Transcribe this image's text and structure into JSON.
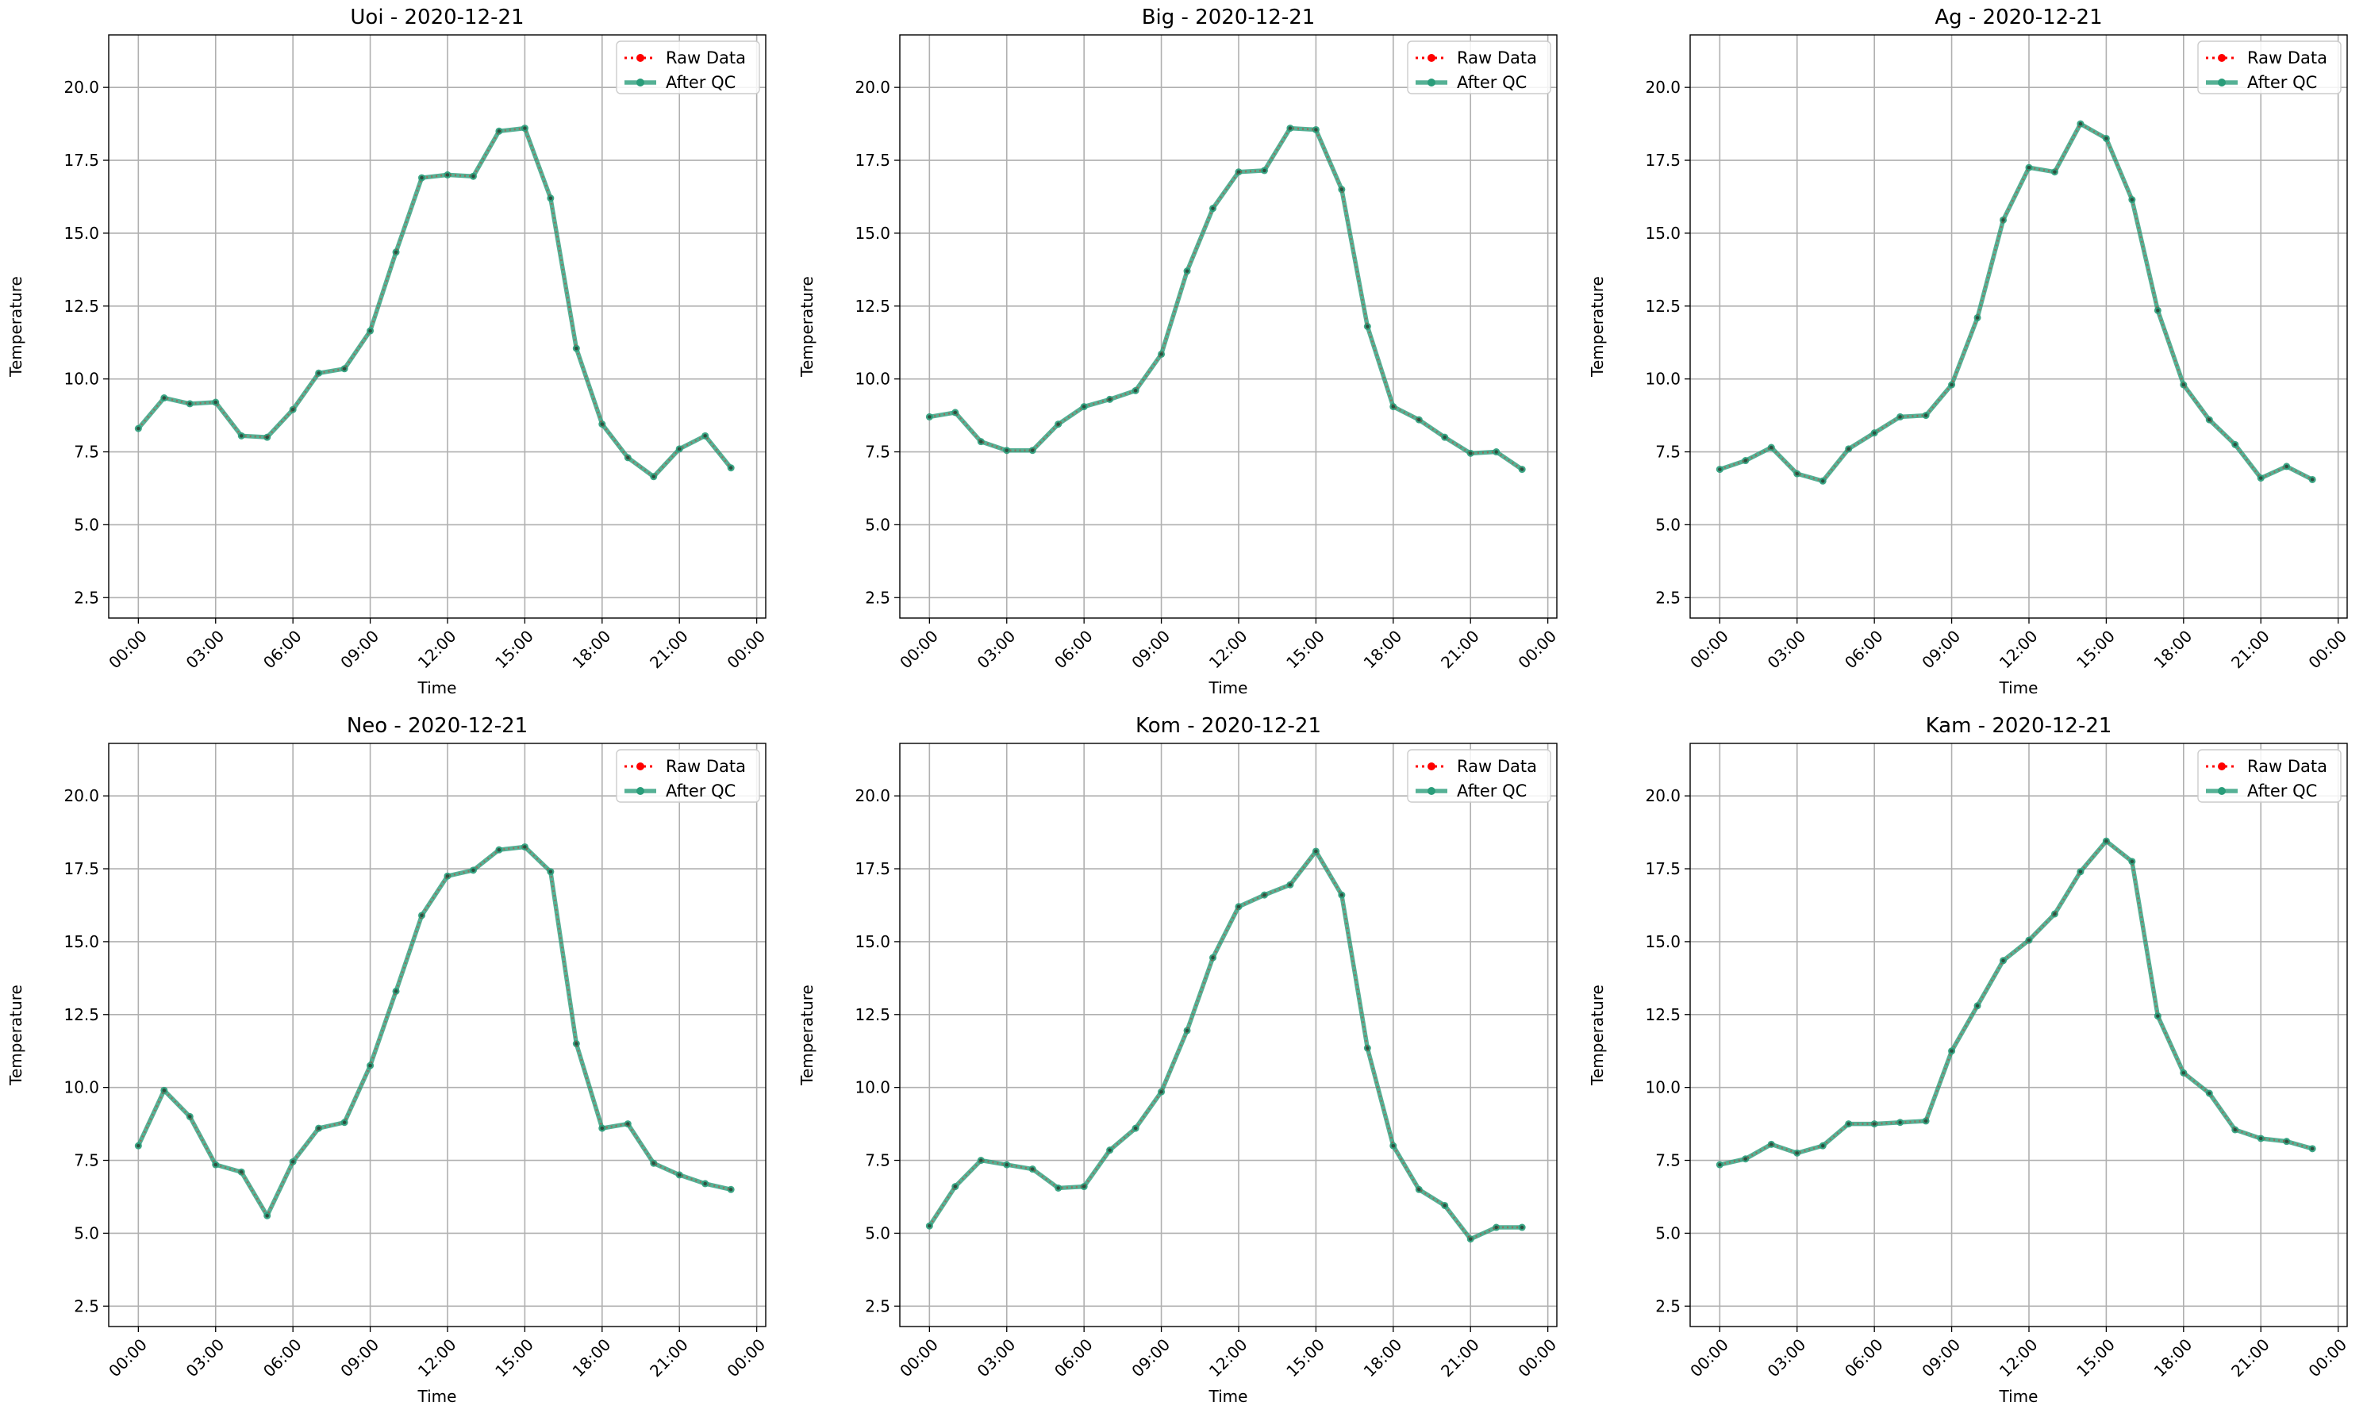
{
  "chart_data": [
    {
      "type": "line",
      "title": "Uoi - 2020-12-21",
      "xlabel": "Time",
      "ylabel": "Temperature",
      "x": [
        "00:00",
        "01:00",
        "02:00",
        "03:00",
        "04:00",
        "05:00",
        "06:00",
        "07:00",
        "08:00",
        "09:00",
        "10:00",
        "11:00",
        "12:00",
        "13:00",
        "14:00",
        "15:00",
        "16:00",
        "17:00",
        "18:00",
        "19:00",
        "20:00",
        "21:00",
        "22:00",
        "23:00"
      ],
      "xticks": [
        "00:00",
        "03:00",
        "06:00",
        "09:00",
        "12:00",
        "15:00",
        "18:00",
        "21:00",
        "00:00"
      ],
      "yticks": [
        "2.5",
        "5.0",
        "7.5",
        "10.0",
        "12.5",
        "15.0",
        "17.5",
        "20.0"
      ],
      "ylim": [
        1.8,
        21.8
      ],
      "grid": true,
      "legend": "top-right",
      "series": [
        {
          "name": "Raw Data",
          "color": "#ff0000",
          "values": [
            8.3,
            9.35,
            9.15,
            9.2,
            8.05,
            8.0,
            8.95,
            10.2,
            10.35,
            11.65,
            14.35,
            16.9,
            17.0,
            16.95,
            18.5,
            18.6,
            16.2,
            11.05,
            8.45,
            7.3,
            6.65,
            7.6,
            8.05,
            6.95
          ]
        },
        {
          "name": "After QC",
          "color": "#2a9d7a",
          "values": [
            8.3,
            9.35,
            9.15,
            9.2,
            8.05,
            8.0,
            8.95,
            10.2,
            10.35,
            11.65,
            14.35,
            16.9,
            17.0,
            16.95,
            18.5,
            18.6,
            16.2,
            11.05,
            8.45,
            7.3,
            6.65,
            7.6,
            8.05,
            6.95
          ]
        }
      ]
    },
    {
      "type": "line",
      "title": "Big - 2020-12-21",
      "xlabel": "Time",
      "ylabel": "Temperature",
      "x": [
        "00:00",
        "01:00",
        "02:00",
        "03:00",
        "04:00",
        "05:00",
        "06:00",
        "07:00",
        "08:00",
        "09:00",
        "10:00",
        "11:00",
        "12:00",
        "13:00",
        "14:00",
        "15:00",
        "16:00",
        "17:00",
        "18:00",
        "19:00",
        "20:00",
        "21:00",
        "22:00",
        "23:00"
      ],
      "xticks": [
        "00:00",
        "03:00",
        "06:00",
        "09:00",
        "12:00",
        "15:00",
        "18:00",
        "21:00",
        "00:00"
      ],
      "yticks": [
        "2.5",
        "5.0",
        "7.5",
        "10.0",
        "12.5",
        "15.0",
        "17.5",
        "20.0"
      ],
      "ylim": [
        1.8,
        21.8
      ],
      "grid": true,
      "legend": "top-right",
      "series": [
        {
          "name": "Raw Data",
          "color": "#ff0000",
          "values": [
            8.7,
            8.85,
            7.85,
            7.55,
            7.55,
            8.45,
            9.05,
            9.3,
            9.6,
            10.85,
            13.7,
            15.85,
            17.1,
            17.15,
            18.6,
            18.55,
            16.5,
            11.8,
            9.05,
            8.6,
            8.0,
            7.45,
            7.5,
            6.9
          ]
        },
        {
          "name": "After QC",
          "color": "#2a9d7a",
          "values": [
            8.7,
            8.85,
            7.85,
            7.55,
            7.55,
            8.45,
            9.05,
            9.3,
            9.6,
            10.85,
            13.7,
            15.85,
            17.1,
            17.15,
            18.6,
            18.55,
            16.5,
            11.8,
            9.05,
            8.6,
            8.0,
            7.45,
            7.5,
            6.9
          ]
        }
      ]
    },
    {
      "type": "line",
      "title": "Ag - 2020-12-21",
      "xlabel": "Time",
      "ylabel": "Temperature",
      "x": [
        "00:00",
        "01:00",
        "02:00",
        "03:00",
        "04:00",
        "05:00",
        "06:00",
        "07:00",
        "08:00",
        "09:00",
        "10:00",
        "11:00",
        "12:00",
        "13:00",
        "14:00",
        "15:00",
        "16:00",
        "17:00",
        "18:00",
        "19:00",
        "20:00",
        "21:00",
        "22:00",
        "23:00"
      ],
      "xticks": [
        "00:00",
        "03:00",
        "06:00",
        "09:00",
        "12:00",
        "15:00",
        "18:00",
        "21:00",
        "00:00"
      ],
      "yticks": [
        "2.5",
        "5.0",
        "7.5",
        "10.0",
        "12.5",
        "15.0",
        "17.5",
        "20.0"
      ],
      "ylim": [
        1.8,
        21.8
      ],
      "grid": true,
      "legend": "top-right",
      "series": [
        {
          "name": "Raw Data",
          "color": "#ff0000",
          "values": [
            6.9,
            7.2,
            7.65,
            6.75,
            6.5,
            7.6,
            8.15,
            8.7,
            8.75,
            9.8,
            12.1,
            15.45,
            17.25,
            17.1,
            18.75,
            18.25,
            16.15,
            12.35,
            9.8,
            8.6,
            7.75,
            6.6,
            7.0,
            6.55
          ]
        },
        {
          "name": "After QC",
          "color": "#2a9d7a",
          "values": [
            6.9,
            7.2,
            7.65,
            6.75,
            6.5,
            7.6,
            8.15,
            8.7,
            8.75,
            9.8,
            12.1,
            15.45,
            17.25,
            17.1,
            18.75,
            18.25,
            16.15,
            12.35,
            9.8,
            8.6,
            7.75,
            6.6,
            7.0,
            6.55
          ]
        }
      ]
    },
    {
      "type": "line",
      "title": "Neo - 2020-12-21",
      "xlabel": "Time",
      "ylabel": "Temperature",
      "x": [
        "00:00",
        "01:00",
        "02:00",
        "03:00",
        "04:00",
        "05:00",
        "06:00",
        "07:00",
        "08:00",
        "09:00",
        "10:00",
        "11:00",
        "12:00",
        "13:00",
        "14:00",
        "15:00",
        "16:00",
        "17:00",
        "18:00",
        "19:00",
        "20:00",
        "21:00",
        "22:00",
        "23:00"
      ],
      "xticks": [
        "00:00",
        "03:00",
        "06:00",
        "09:00",
        "12:00",
        "15:00",
        "18:00",
        "21:00",
        "00:00"
      ],
      "yticks": [
        "2.5",
        "5.0",
        "7.5",
        "10.0",
        "12.5",
        "15.0",
        "17.5",
        "20.0"
      ],
      "ylim": [
        1.8,
        21.8
      ],
      "grid": true,
      "legend": "top-right",
      "series": [
        {
          "name": "Raw Data",
          "color": "#ff0000",
          "values": [
            8.0,
            9.9,
            9.0,
            7.35,
            7.1,
            5.6,
            7.45,
            8.6,
            8.8,
            10.75,
            13.3,
            15.9,
            17.25,
            17.45,
            18.15,
            18.25,
            17.4,
            11.5,
            8.6,
            8.75,
            7.4,
            7.0,
            6.7,
            6.5
          ]
        },
        {
          "name": "After QC",
          "color": "#2a9d7a",
          "values": [
            8.0,
            9.9,
            9.0,
            7.35,
            7.1,
            5.6,
            7.45,
            8.6,
            8.8,
            10.75,
            13.3,
            15.9,
            17.25,
            17.45,
            18.15,
            18.25,
            17.4,
            11.5,
            8.6,
            8.75,
            7.4,
            7.0,
            6.7,
            6.5
          ]
        }
      ]
    },
    {
      "type": "line",
      "title": "Kom - 2020-12-21",
      "xlabel": "Time",
      "ylabel": "Temperature",
      "x": [
        "00:00",
        "01:00",
        "02:00",
        "03:00",
        "04:00",
        "05:00",
        "06:00",
        "07:00",
        "08:00",
        "09:00",
        "10:00",
        "11:00",
        "12:00",
        "13:00",
        "14:00",
        "15:00",
        "16:00",
        "17:00",
        "18:00",
        "19:00",
        "20:00",
        "21:00",
        "22:00",
        "23:00"
      ],
      "xticks": [
        "00:00",
        "03:00",
        "06:00",
        "09:00",
        "12:00",
        "15:00",
        "18:00",
        "21:00",
        "00:00"
      ],
      "yticks": [
        "2.5",
        "5.0",
        "7.5",
        "10.0",
        "12.5",
        "15.0",
        "17.5",
        "20.0"
      ],
      "ylim": [
        1.8,
        21.8
      ],
      "grid": true,
      "legend": "top-right",
      "series": [
        {
          "name": "Raw Data",
          "color": "#ff0000",
          "values": [
            5.25,
            6.6,
            7.5,
            7.35,
            7.2,
            6.55,
            6.6,
            7.85,
            8.6,
            9.85,
            11.95,
            14.45,
            16.2,
            16.6,
            16.95,
            18.1,
            16.6,
            11.35,
            8.0,
            6.5,
            5.95,
            4.8,
            5.2,
            5.2
          ]
        },
        {
          "name": "After QC",
          "color": "#2a9d7a",
          "values": [
            5.25,
            6.6,
            7.5,
            7.35,
            7.2,
            6.55,
            6.6,
            7.85,
            8.6,
            9.85,
            11.95,
            14.45,
            16.2,
            16.6,
            16.95,
            18.1,
            16.6,
            11.35,
            8.0,
            6.5,
            5.95,
            4.8,
            5.2,
            5.2
          ]
        }
      ]
    },
    {
      "type": "line",
      "title": "Kam - 2020-12-21",
      "xlabel": "Time",
      "ylabel": "Temperature",
      "x": [
        "00:00",
        "01:00",
        "02:00",
        "03:00",
        "04:00",
        "05:00",
        "06:00",
        "07:00",
        "08:00",
        "09:00",
        "10:00",
        "11:00",
        "12:00",
        "13:00",
        "14:00",
        "15:00",
        "16:00",
        "17:00",
        "18:00",
        "19:00",
        "20:00",
        "21:00",
        "22:00",
        "23:00"
      ],
      "xticks": [
        "00:00",
        "03:00",
        "06:00",
        "09:00",
        "12:00",
        "15:00",
        "18:00",
        "21:00",
        "00:00"
      ],
      "yticks": [
        "2.5",
        "5.0",
        "7.5",
        "10.0",
        "12.5",
        "15.0",
        "17.5",
        "20.0"
      ],
      "ylim": [
        1.8,
        21.8
      ],
      "grid": true,
      "legend": "top-right",
      "series": [
        {
          "name": "Raw Data",
          "color": "#ff0000",
          "values": [
            7.35,
            7.55,
            8.05,
            7.75,
            8.0,
            8.75,
            8.75,
            8.8,
            8.85,
            11.25,
            12.8,
            14.35,
            15.05,
            15.95,
            17.4,
            18.45,
            17.75,
            12.45,
            10.5,
            9.8,
            8.55,
            8.25,
            8.15,
            7.9
          ]
        },
        {
          "name": "After QC",
          "color": "#2a9d7a",
          "values": [
            7.35,
            7.55,
            8.05,
            7.75,
            8.0,
            8.75,
            8.75,
            8.8,
            8.85,
            11.25,
            12.8,
            14.35,
            15.05,
            15.95,
            17.4,
            18.45,
            17.75,
            12.45,
            10.5,
            9.8,
            8.55,
            8.25,
            8.15,
            7.9
          ]
        }
      ]
    }
  ]
}
